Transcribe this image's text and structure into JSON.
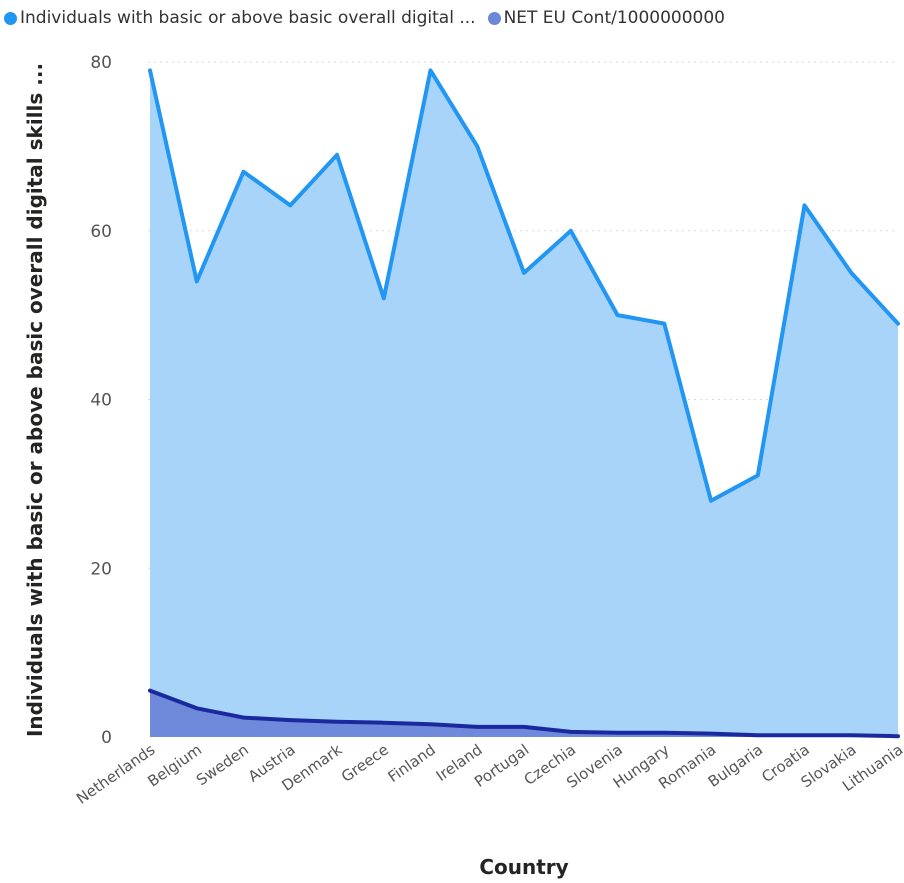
{
  "legend": {
    "series1_label": "Individuals with basic or above basic overall digital ...",
    "series2_label": "NET EU Cont/1000000000"
  },
  "colors": {
    "series1_line": "#2196F3",
    "series1_fill": "#A8D4FA",
    "series2_line": "#1A2A9E",
    "series2_fill": "#6C86D8",
    "grid": "#d9d9d9"
  },
  "chart_data": {
    "type": "area",
    "xlabel": "Country",
    "ylabel": "Individuals with basic or above basic overall digital skills ...",
    "ylim": [
      0,
      80
    ],
    "yticks": [
      0,
      20,
      40,
      60,
      80
    ],
    "grid": "horizontal dotted",
    "legend_position": "top-left",
    "categories": [
      "Netherlands",
      "Belgium",
      "Sweden",
      "Austria",
      "Denmark",
      "Greece",
      "Finland",
      "Ireland",
      "Portugal",
      "Czechia",
      "Slovenia",
      "Hungary",
      "Romania",
      "Bulgaria",
      "Croatia",
      "Slovakia",
      "Lithuania"
    ],
    "series": [
      {
        "name": "Individuals with basic or above basic overall digital ...",
        "values": [
          79,
          54,
          67,
          63,
          69,
          52,
          79,
          70,
          55,
          60,
          50,
          49,
          28,
          31,
          63,
          55,
          49
        ]
      },
      {
        "name": "NET EU Cont/1000000000",
        "values": [
          5.5,
          3.4,
          2.3,
          2.0,
          1.8,
          1.7,
          1.5,
          1.2,
          1.2,
          0.6,
          0.5,
          0.5,
          0.4,
          0.2,
          0.2,
          0.2,
          0.1
        ]
      }
    ]
  }
}
